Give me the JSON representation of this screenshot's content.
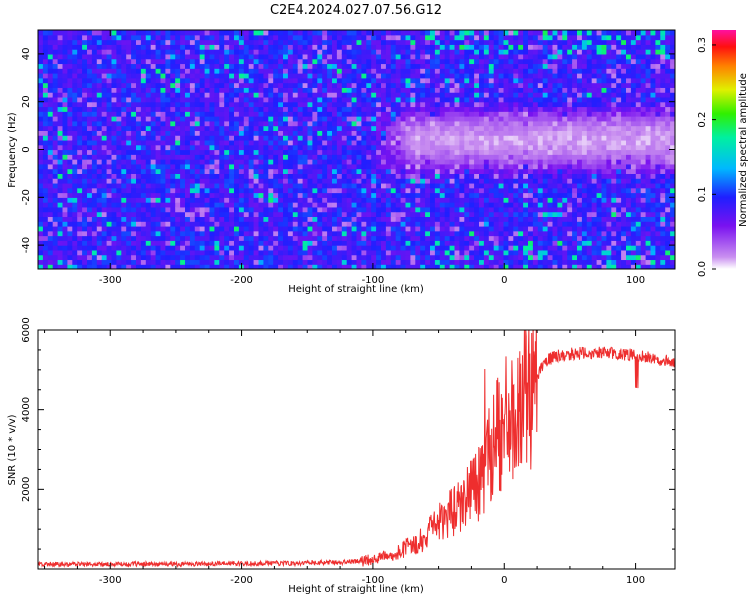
{
  "title": "C2E4.2024.027.07.56.G12",
  "chart_data": [
    {
      "type": "heatmap",
      "xlabel": "Height of straight line (km)",
      "ylabel": "Frequency (Hz)",
      "xlim": [
        -355,
        130
      ],
      "ylim": [
        -50,
        50
      ],
      "xticks": [
        -300,
        -200,
        -100,
        0,
        100
      ],
      "yticks": [
        -40,
        -20,
        0,
        20,
        40
      ],
      "colorbar": {
        "label": "Normalized spectral amplitude",
        "range": [
          0,
          0.32
        ],
        "ticks": [
          "0.0",
          "0.1",
          "0.2",
          "0.3"
        ],
        "colormap": "rainbow (white to magenta)"
      },
      "features": [
        {
          "description": "broad white band of high amplitude centred near 0 Hz",
          "x_range": [
            -110,
            130
          ],
          "y_center": 3,
          "y_halfwidth": 16
        }
      ],
      "grid": false
    },
    {
      "type": "line",
      "xlabel": "Height of straight line (km)",
      "ylabel": "SNR (10 * v/v)",
      "xlim": [
        -355,
        130
      ],
      "ylim": [
        0,
        6000
      ],
      "xticks": [
        -300,
        -200,
        -100,
        0,
        100
      ],
      "yticks": [
        2000,
        4000,
        6000
      ],
      "color": "#ee2e2e",
      "series": [
        {
          "x": [
            -355,
            -300,
            -250,
            -200,
            -150,
            -120,
            -100,
            -80,
            -60,
            -45,
            -30,
            -20,
            -10,
            0,
            10,
            20,
            30,
            40,
            50,
            60,
            70,
            80,
            90,
            100,
            110,
            120,
            130
          ],
          "values": [
            120,
            120,
            125,
            140,
            150,
            170,
            230,
            420,
            800,
            1300,
            1700,
            2100,
            3000,
            3700,
            3900,
            4500,
            5200,
            5350,
            5400,
            5420,
            5420,
            5430,
            5400,
            5350,
            5300,
            5250,
            5200
          ]
        }
      ],
      "grid": false
    }
  ]
}
